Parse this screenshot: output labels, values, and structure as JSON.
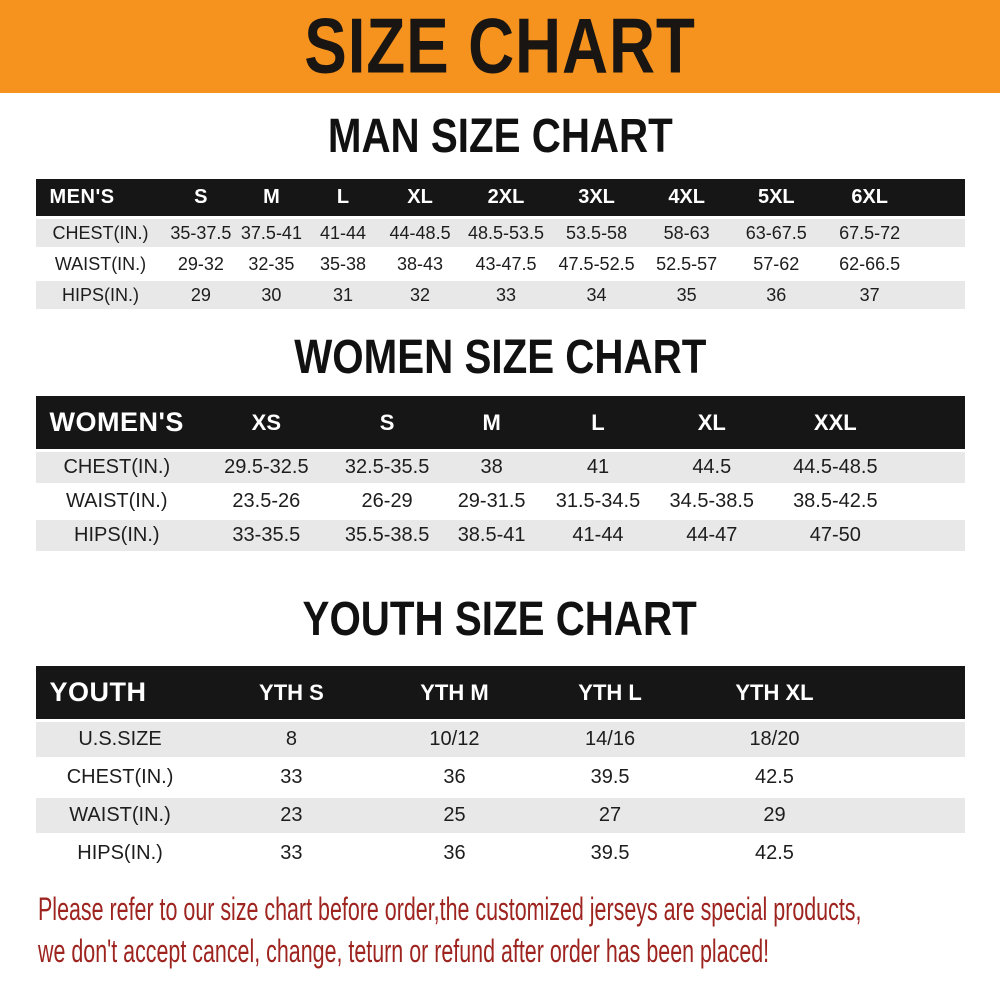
{
  "banner": {
    "title": "SIZE CHART"
  },
  "sections": [
    {
      "heading": "MAN SIZE CHART",
      "table": {
        "header": [
          "MEN'S",
          "S",
          "M",
          "L",
          "XL",
          "2XL",
          "3XL",
          "4XL",
          "5XL",
          "6XL"
        ],
        "rows": [
          [
            "CHEST(IN.)",
            "35-37.5",
            "37.5-41",
            "41-44",
            "44-48.5",
            "48.5-53.5",
            "53.5-58",
            "58-63",
            "63-67.5",
            "67.5-72"
          ],
          [
            "WAIST(IN.)",
            "29-32",
            "32-35",
            "35-38",
            "38-43",
            "43-47.5",
            "47.5-52.5",
            "52.5-57",
            "57-62",
            "62-66.5"
          ],
          [
            "HIPS(IN.)",
            "29",
            "30",
            "31",
            "32",
            "33",
            "34",
            "35",
            "36",
            "37"
          ]
        ]
      }
    },
    {
      "heading": "WOMEN SIZE CHART",
      "table": {
        "header": [
          "WOMEN'S",
          "XS",
          "S",
          "M",
          "L",
          "XL",
          "XXL"
        ],
        "rows": [
          [
            "CHEST(IN.)",
            "29.5-32.5",
            "32.5-35.5",
            "38",
            "41",
            "44.5",
            "44.5-48.5"
          ],
          [
            "WAIST(IN.)",
            "23.5-26",
            "26-29",
            "29-31.5",
            "31.5-34.5",
            "34.5-38.5",
            "38.5-42.5"
          ],
          [
            "HIPS(IN.)",
            "33-35.5",
            "35.5-38.5",
            "38.5-41",
            "41-44",
            "44-47",
            "47-50"
          ]
        ]
      }
    },
    {
      "heading": "YOUTH SIZE CHART",
      "table": {
        "header": [
          "YOUTH",
          "YTH S",
          "YTH M",
          "YTH L",
          "YTH XL"
        ],
        "rows": [
          [
            "U.S.SIZE",
            "8",
            "10/12",
            "14/16",
            "18/20"
          ],
          [
            "CHEST(IN.)",
            "33",
            "36",
            "39.5",
            "42.5"
          ],
          [
            "WAIST(IN.)",
            "23",
            "25",
            "27",
            "29"
          ],
          [
            "HIPS(IN.)",
            "33",
            "36",
            "39.5",
            "42.5"
          ]
        ]
      }
    }
  ],
  "disclaimer": {
    "line1": "Please refer to our size chart before order,the customized jerseys are special products,",
    "line2": "we don't accept cancel, change, teturn or refund after order has been placed!"
  },
  "colors": {
    "banner_bg": "#f6921e",
    "header_bar": "#161616",
    "row_stripe": "#e8e8e8",
    "disclaimer_text": "#9e2420"
  }
}
